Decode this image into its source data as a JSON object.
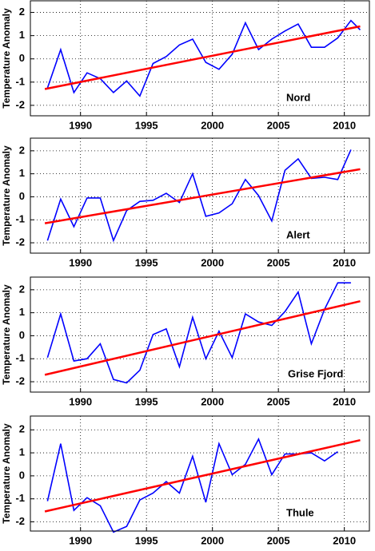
{
  "chart_data": [
    {
      "type": "line",
      "annotation": "Nord",
      "ylabel": "Temperature Anomaly",
      "xlim": [
        1986.2,
        2011.9
      ],
      "xticks": [
        1990,
        1995,
        2000,
        2005,
        2010
      ],
      "ylim": [
        -2.45,
        2.5
      ],
      "yticks": [
        -2,
        -1,
        0,
        1,
        2
      ],
      "grid": true,
      "series": [
        {
          "color": "#0000ff",
          "x": [
            1987.5,
            1988.5,
            1989.5,
            1990.5,
            1991.5,
            1992.5,
            1993.5,
            1994.5,
            1995.5,
            1996.5,
            1997.5,
            1998.5,
            1999.5,
            2000.5,
            2001.5,
            2002.5,
            2003.5,
            2004.5,
            2005.5,
            2006.5,
            2007.5,
            2008.5,
            2009.5,
            2010.5,
            2011.2
          ],
          "values": [
            -1.25,
            0.4,
            -1.45,
            -0.6,
            -0.85,
            -1.45,
            -0.95,
            -1.6,
            -0.2,
            0.1,
            0.6,
            0.85,
            -0.15,
            -0.45,
            0.2,
            1.55,
            0.4,
            0.85,
            1.2,
            1.5,
            0.5,
            0.5,
            0.9,
            1.65,
            1.25
          ]
        },
        {
          "color": "#ff0000",
          "x": [
            1987.3,
            2011.2
          ],
          "values": [
            -1.3,
            1.4
          ]
        }
      ]
    },
    {
      "type": "line",
      "annotation": "Alert",
      "ylabel": "Temperature Anomaly",
      "xlim": [
        1986.2,
        2011.9
      ],
      "xticks": [
        1990,
        1995,
        2000,
        2005,
        2010
      ],
      "ylim": [
        -2.45,
        2.55
      ],
      "yticks": [
        -2,
        -1,
        0,
        1,
        2
      ],
      "grid": true,
      "series": [
        {
          "color": "#0000ff",
          "x": [
            1987.5,
            1988.5,
            1989.5,
            1990.5,
            1991.5,
            1992.5,
            1993.5,
            1994.5,
            1995.5,
            1996.5,
            1997.5,
            1998.5,
            1999.5,
            2000.5,
            2001.5,
            2002.5,
            2003.5,
            2004.5,
            2005.5,
            2006.5,
            2007.5,
            2008.5,
            2009.5,
            2010.5
          ],
          "values": [
            -1.9,
            -0.1,
            -1.3,
            -0.05,
            -0.05,
            -1.9,
            -0.6,
            -0.2,
            -0.15,
            0.15,
            -0.25,
            1.0,
            -0.85,
            -0.7,
            -0.3,
            0.75,
            0.05,
            -1.05,
            1.15,
            1.65,
            0.8,
            0.85,
            0.75,
            2.05
          ]
        },
        {
          "color": "#ff0000",
          "x": [
            1987.3,
            2011.2
          ],
          "values": [
            -1.15,
            1.2
          ]
        }
      ]
    },
    {
      "type": "line",
      "annotation": "Grise Fjord",
      "ylabel": "Temperature Anomaly",
      "xlim": [
        1986.2,
        2011.9
      ],
      "xticks": [
        1990,
        1995,
        2000,
        2005,
        2010
      ],
      "ylim": [
        -2.45,
        2.55
      ],
      "yticks": [
        -2,
        -1,
        0,
        1,
        2
      ],
      "grid": true,
      "series": [
        {
          "color": "#0000ff",
          "x": [
            1987.5,
            1988.5,
            1989.5,
            1990.5,
            1991.5,
            1992.5,
            1993.5,
            1994.5,
            1995.5,
            1996.5,
            1997.5,
            1998.5,
            1999.5,
            2000.5,
            2001.5,
            2002.5,
            2003.5,
            2004.5,
            2005.5,
            2006.5,
            2007.5,
            2008.5,
            2009.5,
            2010.5
          ],
          "values": [
            -0.95,
            0.95,
            -1.1,
            -1.0,
            -0.35,
            -1.9,
            -2.05,
            -1.5,
            0.05,
            0.3,
            -1.35,
            0.8,
            -1.0,
            0.2,
            -0.95,
            0.95,
            0.6,
            0.45,
            1.05,
            1.9,
            -0.35,
            1.15,
            2.3,
            2.3
          ]
        },
        {
          "color": "#ff0000",
          "x": [
            1987.3,
            2011.2
          ],
          "values": [
            -1.7,
            1.5
          ]
        }
      ]
    },
    {
      "type": "line",
      "annotation": "Thule",
      "ylabel": "Temperature Anomaly",
      "xlim": [
        1986.2,
        2011.9
      ],
      "xticks": [
        1990,
        1995,
        2000,
        2005,
        2010
      ],
      "ylim": [
        -2.4,
        2.6
      ],
      "yticks": [
        -2,
        -1,
        0,
        1,
        2
      ],
      "grid": true,
      "series": [
        {
          "color": "#0000ff",
          "x": [
            1987.5,
            1988.5,
            1989.5,
            1990.5,
            1991.5,
            1992.5,
            1993.5,
            1994.5,
            1995.5,
            1996.5,
            1997.5,
            1998.5,
            1999.5,
            2000.5,
            2001.5,
            2002.5,
            2003.5,
            2004.5,
            2005.5,
            2006.5,
            2007.5,
            2008.5,
            2009.5
          ],
          "values": [
            -1.1,
            1.4,
            -1.5,
            -0.95,
            -1.3,
            -2.45,
            -2.2,
            -1.05,
            -0.75,
            -0.25,
            -0.75,
            0.85,
            -1.15,
            1.4,
            0.05,
            0.5,
            1.6,
            0.05,
            0.95,
            0.95,
            1.0,
            0.65,
            1.05
          ]
        },
        {
          "color": "#ff0000",
          "x": [
            1987.3,
            2011.2
          ],
          "values": [
            -1.55,
            1.55
          ]
        }
      ]
    }
  ]
}
